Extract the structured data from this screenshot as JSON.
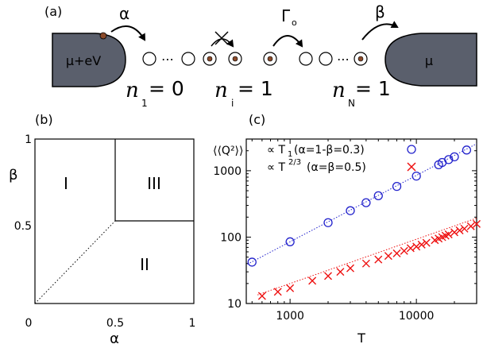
{
  "panel_a": {
    "label": "(a)",
    "left_reservoir": "μ+eV",
    "right_reservoir": "μ",
    "rate_in": "α",
    "rate_hop": "Γ",
    "rate_hop_sub": "o",
    "rate_out": "β",
    "dots": "⋯",
    "occupations": [
      {
        "n": "n",
        "sub": "1",
        "eq": "= 0"
      },
      {
        "n": "n",
        "sub": "i",
        "eq": "= 1"
      },
      {
        "n": "n",
        "sub": "N",
        "eq": "= 1"
      }
    ],
    "colors": {
      "reservoir": "#5a5f6c",
      "particle": "#8a4a2a"
    }
  },
  "panel_b": {
    "label": "(b)",
    "regions": [
      "I",
      "III",
      "II"
    ],
    "x_axis_label": "α",
    "y_axis_label": "β",
    "x_ticks": [
      "0",
      "0.5",
      "1"
    ],
    "y_ticks": [
      "0.5",
      "1"
    ]
  },
  "panel_c": {
    "label": "(c)",
    "ylabel": "⟨⟨Q²⟩⟩",
    "xlabel": "T",
    "legend": [
      {
        "prefix": "∝ T",
        "sub": "1",
        "cond": "(α=1-β=0.3)",
        "color": "#2222cc",
        "marker": "circle"
      },
      {
        "prefix": "∝ T",
        "sup": "2/3",
        "cond": "(α=β=0.5)",
        "color": "#ee1111",
        "marker": "cross"
      }
    ],
    "x_tick_labels": [
      "1000",
      "10000"
    ],
    "y_tick_labels": [
      "10",
      "100",
      "1000"
    ]
  },
  "chart_data": {
    "type": "scatter",
    "x_scale": "log",
    "y_scale": "log",
    "xlim": [
      450,
      30000
    ],
    "ylim": [
      10,
      3000
    ],
    "series": [
      {
        "color": "#2222cc",
        "marker": "circle",
        "fit": {
          "exponent": 1,
          "coefficient": 0.085
        },
        "x": [
          500,
          1000,
          2000,
          3000,
          4000,
          5000,
          7000,
          10000,
          15000,
          16000,
          18000,
          20000,
          25000
        ],
        "y": [
          42,
          85,
          165,
          250,
          330,
          420,
          580,
          830,
          1230,
          1330,
          1470,
          1620,
          2050
        ]
      },
      {
        "color": "#ee1111",
        "marker": "cross",
        "fit": {
          "exponent": 0.6667,
          "coefficient": 0.2
        },
        "x": [
          600,
          800,
          1000,
          1500,
          2000,
          2500,
          3000,
          4000,
          5000,
          6000,
          7000,
          8000,
          9000,
          10000,
          11000,
          12000,
          14000,
          15000,
          16000,
          17000,
          18000,
          20000,
          22000,
          24000,
          27000,
          30000
        ],
        "y": [
          13,
          15,
          17,
          22,
          26,
          30,
          34,
          40,
          46,
          52,
          57,
          62,
          68,
          72,
          77,
          82,
          90,
          95,
          100,
          105,
          110,
          118,
          126,
          134,
          146,
          158
        ]
      }
    ]
  }
}
